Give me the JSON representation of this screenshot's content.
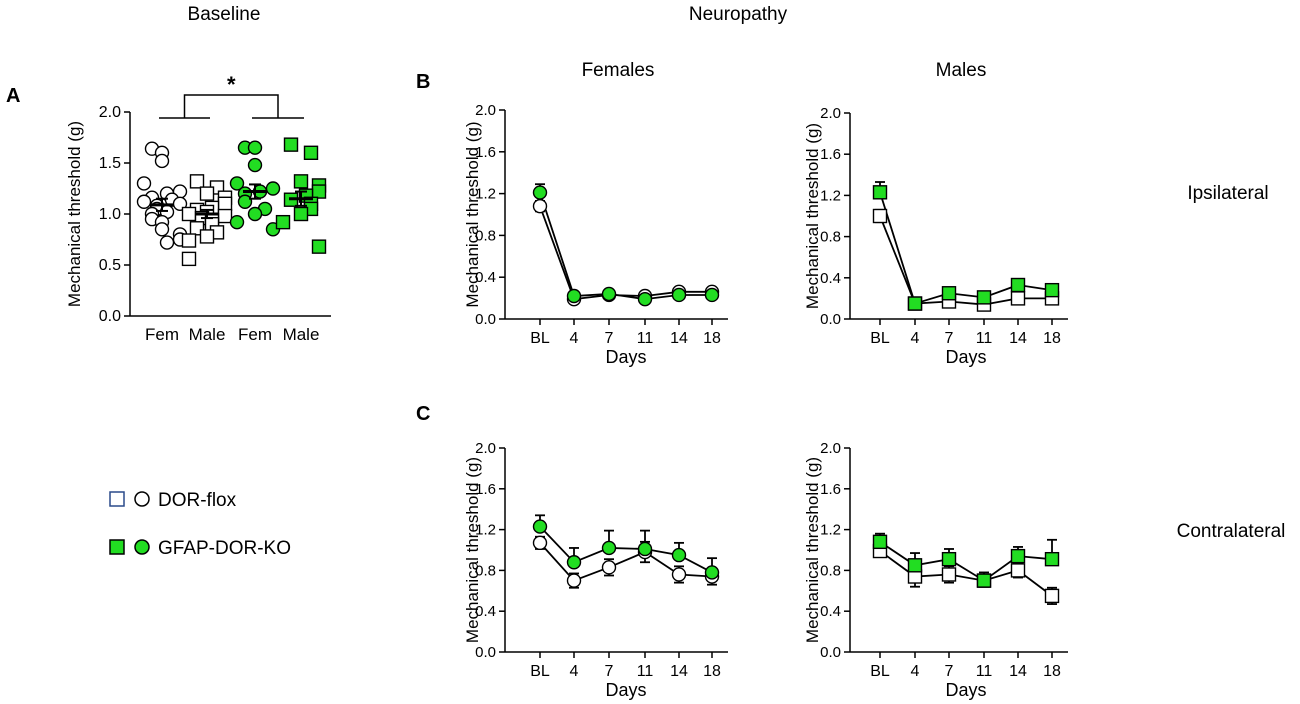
{
  "headings": {
    "baseline": "Baseline",
    "neuropathy": "Neuropathy",
    "females": "Females",
    "males": "Males",
    "ipsilateral": "Ipsilateral",
    "contralateral": "Contralateral",
    "panel_a": "A",
    "panel_b": "B",
    "panel_c": "C",
    "significance": "*"
  },
  "legend": [
    {
      "label": "DOR-flox",
      "markers": [
        "open-square",
        "open-circle"
      ],
      "fill": "#ffffff"
    },
    {
      "label": "GFAP-DOR-KO",
      "markers": [
        "green-square",
        "green-circle"
      ],
      "fill": "#22dd22"
    }
  ],
  "colors": {
    "green": "#22dd22",
    "open": "#ffffff",
    "stroke": "#000000"
  },
  "chart_data": [
    {
      "id": "A",
      "type": "scatter",
      "title": "Baseline",
      "ylabel": "Mechanical threshold (g)",
      "xlabel": "",
      "ylim": [
        0,
        2.0
      ],
      "yticks": [
        "0.0",
        "0.5",
        "1.0",
        "1.5",
        "2.0"
      ],
      "yticks_values": [
        0,
        0.5,
        1.0,
        1.5,
        2.0
      ],
      "categories": [
        "Fem",
        "Male",
        "Fem",
        "Male"
      ],
      "groups": [
        {
          "name": "DOR-flox Fem",
          "marker": "circle",
          "fill": "#ffffff",
          "points": [
            1.64,
            1.6,
            1.52,
            1.3,
            1.22,
            1.2,
            1.16,
            1.14,
            1.12,
            1.1,
            1.08,
            1.05,
            1.02,
            1.0,
            0.95,
            0.92,
            0.85,
            0.8,
            0.75,
            0.72
          ],
          "mean": 1.09,
          "sem": 0.06
        },
        {
          "name": "DOR-flox Male",
          "marker": "square",
          "fill": "#ffffff",
          "points": [
            1.32,
            1.26,
            1.2,
            1.16,
            1.1,
            1.06,
            1.04,
            1.02,
            1.0,
            0.98,
            0.96,
            0.94,
            0.9,
            0.86,
            0.82,
            0.78,
            0.74,
            0.56
          ],
          "mean": 1.0,
          "sem": 0.04
        },
        {
          "name": "GFAP-DOR-KO Fem",
          "marker": "circle",
          "fill": "#22dd22",
          "points": [
            1.65,
            1.65,
            1.48,
            1.3,
            1.25,
            1.22,
            1.2,
            1.12,
            1.05,
            1.0,
            0.92,
            0.85
          ],
          "mean": 1.22,
          "sem": 0.07
        },
        {
          "name": "GFAP-DOR-KO Male",
          "marker": "square",
          "fill": "#22dd22",
          "points": [
            1.68,
            1.6,
            1.32,
            1.28,
            1.22,
            1.18,
            1.14,
            1.1,
            1.05,
            1.0,
            0.92,
            0.68
          ],
          "mean": 1.15,
          "sem": 0.07
        }
      ],
      "annotation": "*"
    },
    {
      "id": "B-females",
      "type": "line",
      "title": "Females",
      "side": "Ipsilateral",
      "ylabel": "Mechanical threshold (g)",
      "xlabel": "Days",
      "categories": [
        "BL",
        "4",
        "7",
        "11",
        "14",
        "18"
      ],
      "ylim": [
        0,
        2.0
      ],
      "yticks": [
        "0.0",
        "0.4",
        "0.8",
        "1.2",
        "1.6",
        "2.0"
      ],
      "yticks_values": [
        0,
        0.4,
        0.8,
        1.2,
        1.6,
        2.0
      ],
      "series": [
        {
          "name": "DOR-flox",
          "marker": "circle",
          "fill": "#ffffff",
          "values": [
            1.08,
            0.19,
            0.23,
            0.22,
            0.26,
            0.26
          ],
          "err": [
            0.05,
            0.02,
            0.03,
            0.03,
            0.03,
            0.03
          ]
        },
        {
          "name": "GFAP-DOR-KO",
          "marker": "circle",
          "fill": "#22dd22",
          "values": [
            1.21,
            0.22,
            0.24,
            0.19,
            0.23,
            0.23
          ],
          "err": [
            0.08,
            0.03,
            0.04,
            0.03,
            0.04,
            0.04
          ]
        }
      ]
    },
    {
      "id": "B-males",
      "type": "line",
      "title": "Males",
      "side": "Ipsilateral",
      "ylabel": "Mechanical threshold (g)",
      "xlabel": "Days",
      "categories": [
        "BL",
        "4",
        "7",
        "11",
        "14",
        "18"
      ],
      "ylim": [
        0,
        2.0
      ],
      "yticks": [
        "0.0",
        "0.4",
        "0.8",
        "1.2",
        "1.6",
        "2.0"
      ],
      "yticks_values": [
        0,
        0.4,
        0.8,
        1.2,
        1.6,
        2.0
      ],
      "series": [
        {
          "name": "DOR-flox",
          "marker": "square",
          "fill": "#ffffff",
          "values": [
            1.0,
            0.15,
            0.17,
            0.14,
            0.2,
            0.2
          ],
          "err": [
            0.06,
            0.02,
            0.03,
            0.02,
            0.04,
            0.04
          ]
        },
        {
          "name": "GFAP-DOR-KO",
          "marker": "square",
          "fill": "#22dd22",
          "values": [
            1.23,
            0.15,
            0.25,
            0.21,
            0.33,
            0.28
          ],
          "err": [
            0.1,
            0.02,
            0.04,
            0.04,
            0.05,
            0.04
          ]
        }
      ]
    },
    {
      "id": "C-females",
      "type": "line",
      "title": "Females",
      "side": "Contralateral",
      "ylabel": "Mechanical threshold (g)",
      "xlabel": "Days",
      "categories": [
        "BL",
        "4",
        "7",
        "11",
        "14",
        "18"
      ],
      "ylim": [
        0,
        2.0
      ],
      "yticks": [
        "0.0",
        "0.4",
        "0.8",
        "1.2",
        "1.6",
        "2.0"
      ],
      "yticks_values": [
        0,
        0.4,
        0.8,
        1.2,
        1.6,
        2.0
      ],
      "series": [
        {
          "name": "DOR-flox",
          "marker": "circle",
          "fill": "#ffffff",
          "values": [
            1.07,
            0.7,
            0.83,
            0.98,
            0.76,
            0.74
          ],
          "err": [
            0.06,
            0.07,
            0.08,
            0.1,
            0.08,
            0.08
          ]
        },
        {
          "name": "GFAP-DOR-KO",
          "marker": "circle",
          "fill": "#22dd22",
          "values": [
            1.23,
            0.88,
            1.02,
            1.01,
            0.95,
            0.78
          ],
          "err": [
            0.11,
            0.14,
            0.17,
            0.18,
            0.12,
            0.14
          ]
        }
      ]
    },
    {
      "id": "C-males",
      "type": "line",
      "title": "Males",
      "side": "Contralateral",
      "ylabel": "Mechanical threshold (g)",
      "xlabel": "Days",
      "categories": [
        "BL",
        "4",
        "7",
        "11",
        "14",
        "18"
      ],
      "ylim": [
        0,
        2.0
      ],
      "yticks": [
        "0.0",
        "0.4",
        "0.8",
        "1.2",
        "1.6",
        "2.0"
      ],
      "yticks_values": [
        0,
        0.4,
        0.8,
        1.2,
        1.6,
        2.0
      ],
      "series": [
        {
          "name": "DOR-flox",
          "marker": "square",
          "fill": "#ffffff",
          "values": [
            0.99,
            0.74,
            0.76,
            0.7,
            0.8,
            0.55
          ],
          "err": [
            0.05,
            0.1,
            0.08,
            0.06,
            0.07,
            0.08
          ]
        },
        {
          "name": "GFAP-DOR-KO",
          "marker": "square",
          "fill": "#22dd22",
          "values": [
            1.08,
            0.85,
            0.91,
            0.7,
            0.94,
            0.91
          ],
          "err": [
            0.08,
            0.12,
            0.1,
            0.08,
            0.09,
            0.19
          ]
        }
      ]
    }
  ]
}
